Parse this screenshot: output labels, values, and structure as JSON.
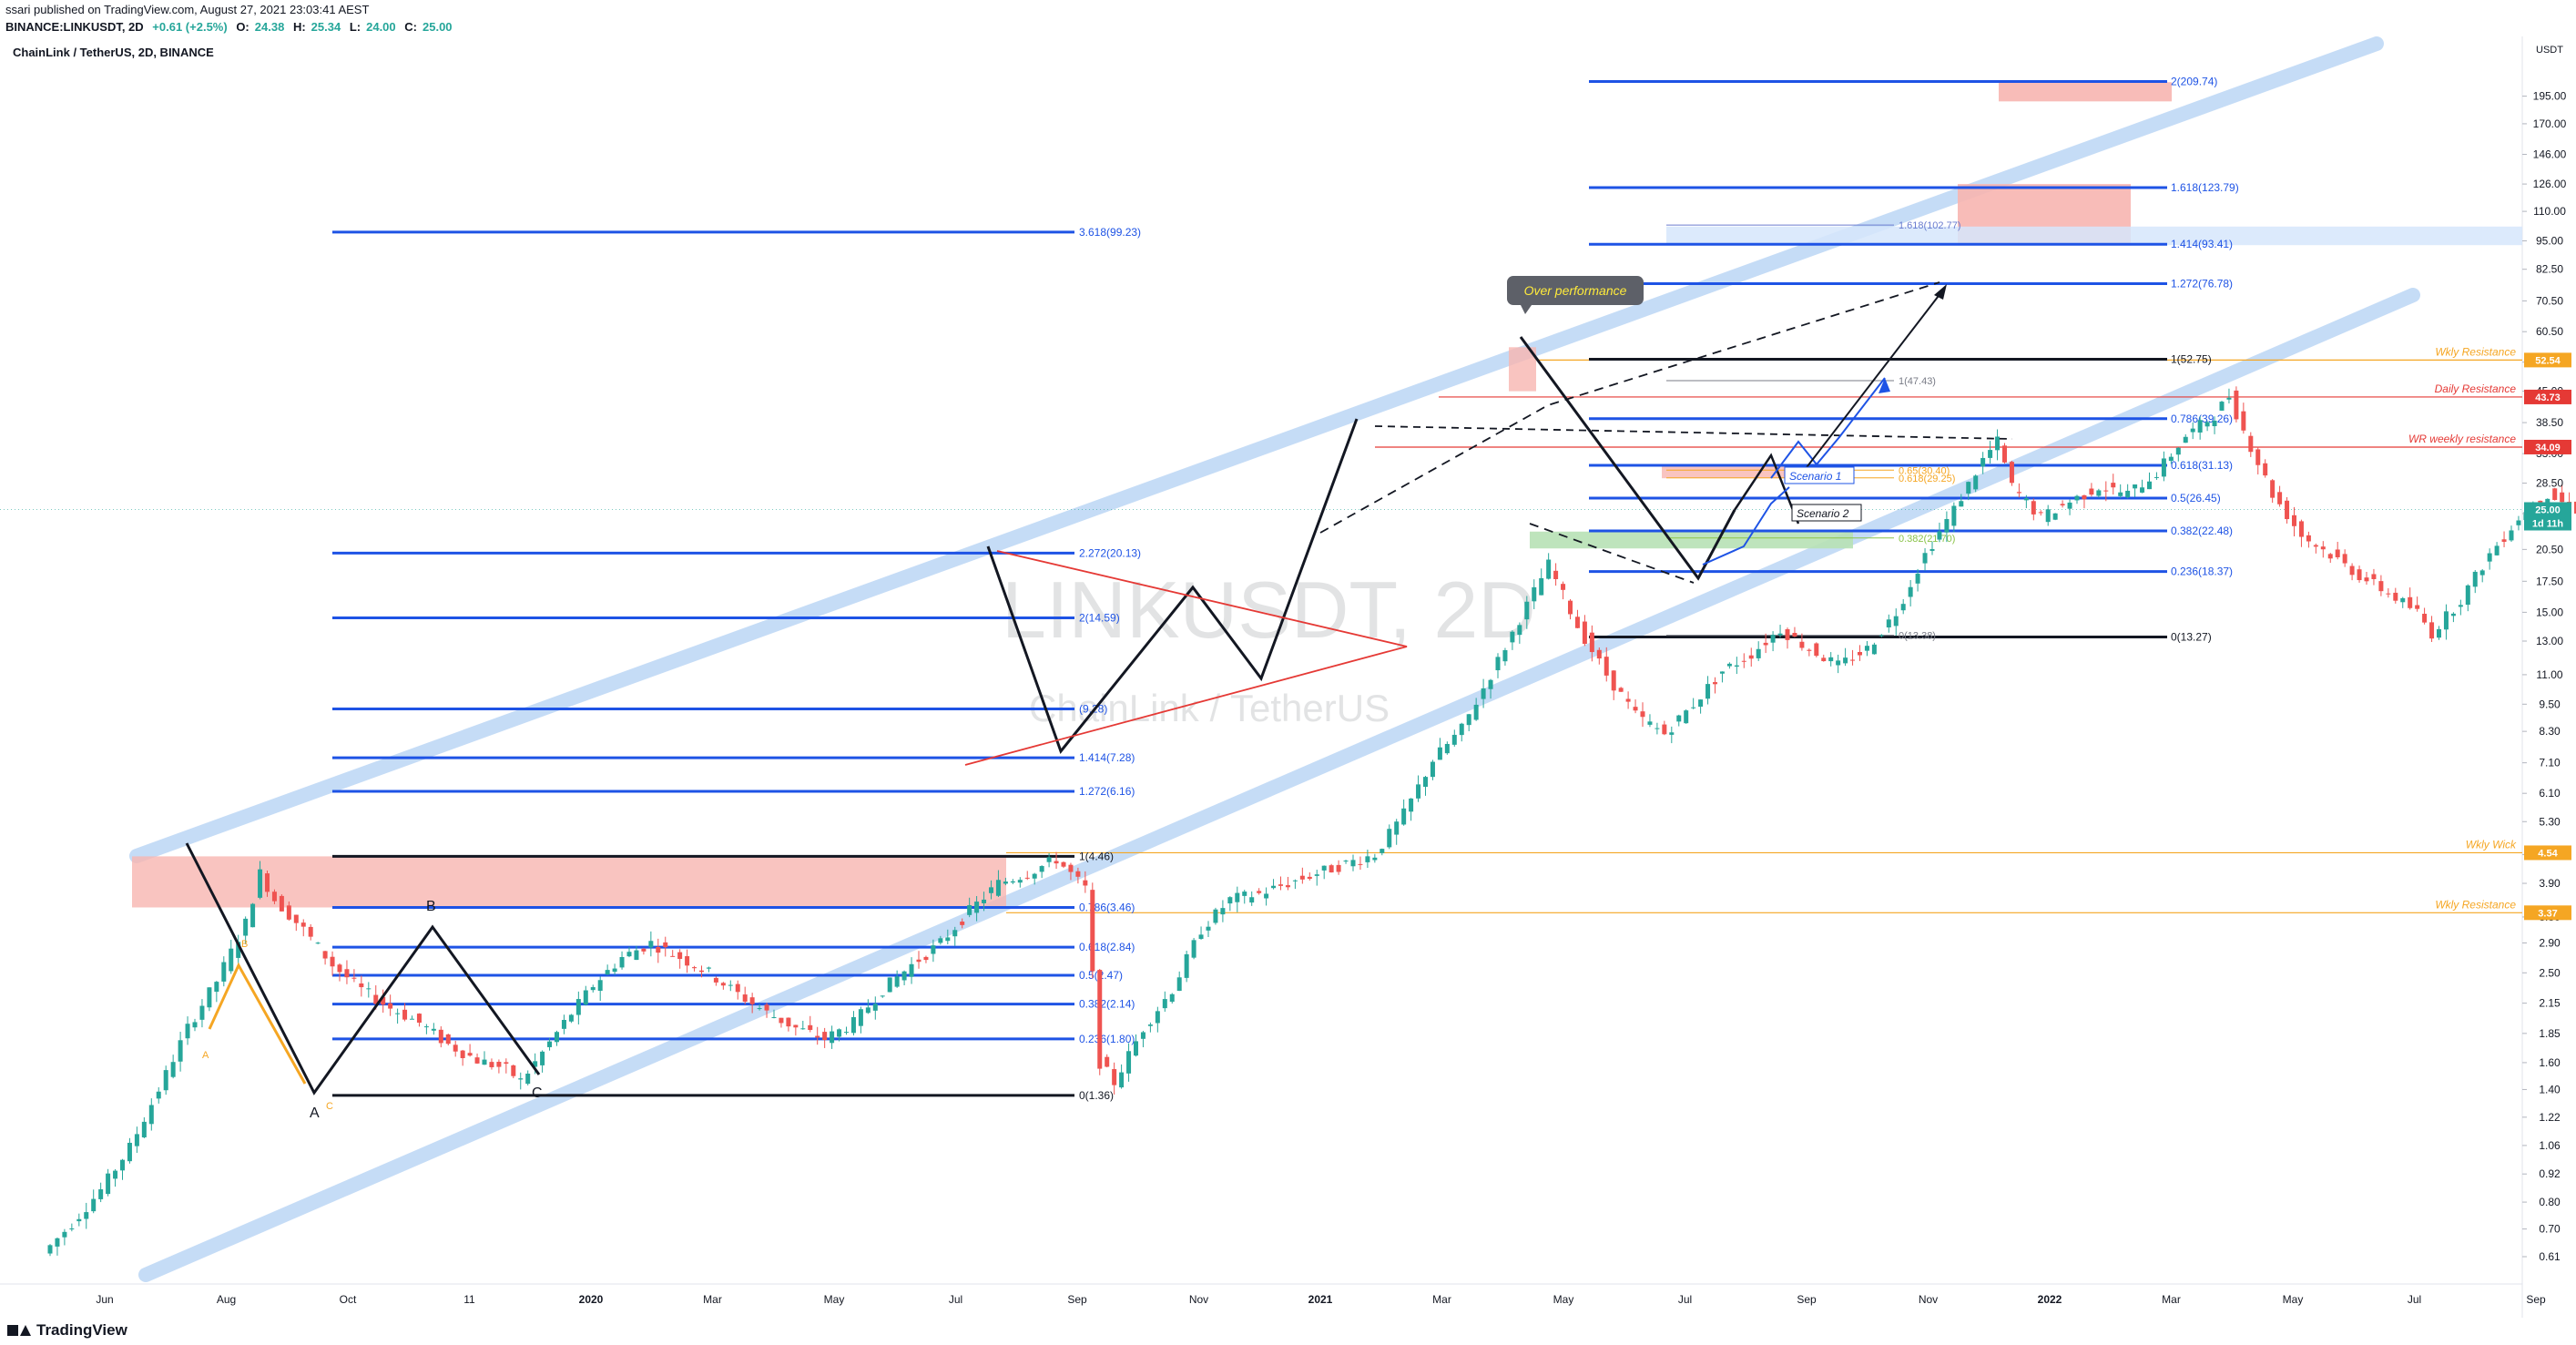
{
  "header": {
    "published": "ssari published on TradingView.com, August 27, 2021 23:03:41 AEST",
    "symbol_line": "BINANCE:LINKUSDT, 2D",
    "open_label": "O:",
    "open": "24.38",
    "high_label": "H:",
    "high": "25.34",
    "low_label": "L:",
    "low": "24.00",
    "close_label": "C:",
    "close": "25.00",
    "last": "25.00",
    "change": "+0.61 (+2.5%)"
  },
  "chart_title": "ChainLink / TetherUS, 2D, BINANCE",
  "watermark": {
    "symbol": "LINKUSDT, 2D",
    "name": "ChainLink / TetherUS"
  },
  "footer": {
    "brand": "TradingView"
  },
  "colors": {
    "up": "#26a69a",
    "down": "#ef5350",
    "fib_blue": "#1e53e5",
    "channel": "#bbd6f5",
    "resistance_orange": "#f5a623",
    "red_line": "#e53935",
    "zone_red": "#f7b5b0",
    "zone_green": "#b7e1b5",
    "zone_blue": "#d6e6fb"
  },
  "chart_data": {
    "type": "candlestick",
    "title": "ChainLink / TetherUS, 2D, BINANCE",
    "xlabel": "",
    "ylabel": "",
    "price_scale": "log",
    "currency": "USDT",
    "yrange": [
      0.6,
      230
    ],
    "y_ticks": [
      "195.00",
      "170.00",
      "146.00",
      "126.00",
      "110.00",
      "95.00",
      "82.50",
      "70.50",
      "60.50",
      "52.00",
      "45.00",
      "38.50",
      "33.00",
      "28.50",
      "24.50",
      "20.50",
      "17.50",
      "15.00",
      "13.00",
      "11.00",
      "9.50",
      "8.30",
      "7.10",
      "6.10",
      "5.30",
      "4.50",
      "3.90",
      "3.30",
      "2.90",
      "2.50",
      "2.15",
      "1.85",
      "1.60",
      "1.40",
      "1.22",
      "1.06",
      "0.92",
      "0.80",
      "0.70",
      "0.61"
    ],
    "x_ticks": [
      "Jun",
      "Aug",
      "Oct",
      "11",
      "2020",
      "Mar",
      "May",
      "Jul",
      "Sep",
      "Nov",
      "2021",
      "Mar",
      "May",
      "Jul",
      "Sep",
      "Nov",
      "2022",
      "Mar",
      "May",
      "Jul",
      "Sep"
    ],
    "price_badges": [
      {
        "price": "52.54",
        "kind": "orange"
      },
      {
        "price": "43.73",
        "kind": "red"
      },
      {
        "price": "34.09",
        "kind": "red"
      },
      {
        "price": "25.00",
        "kind": "green"
      },
      {
        "price": "1d 11h",
        "kind": "countdown"
      },
      {
        "price": "4.54",
        "kind": "orange"
      },
      {
        "price": "3.37",
        "kind": "orange"
      }
    ],
    "horizontal_labels": [
      {
        "text": "Wkly Resistance",
        "price": 52.54
      },
      {
        "text": "Daily Resistance",
        "price": 43.73
      },
      {
        "text": "WR weekly resistance",
        "price": 34.09
      },
      {
        "text": "Wkly Wick",
        "price": 4.54
      },
      {
        "text": "Wkly Resistance",
        "price": 3.37
      }
    ],
    "fib_2019": [
      {
        "label": "3.618(99.23)",
        "price": 99.23
      },
      {
        "label": "2.272(20.13)",
        "price": 20.13
      },
      {
        "label": "2(14.59)",
        "price": 14.59
      },
      {
        "label": "(9.28)",
        "price": 9.28
      },
      {
        "label": "1.414(7.28)",
        "price": 7.28
      },
      {
        "label": "1.272(6.16)",
        "price": 6.16
      },
      {
        "label": "1(4.46)",
        "price": 4.46
      },
      {
        "label": "0.786(3.46)",
        "price": 3.46
      },
      {
        "label": "0.618(2.84)",
        "price": 2.84
      },
      {
        "label": "0.5(2.47)",
        "price": 2.47
      },
      {
        "label": "0.382(2.14)",
        "price": 2.14
      },
      {
        "label": "0.236(1.80)",
        "price": 1.8
      },
      {
        "label": "0(1.36)",
        "price": 1.36
      }
    ],
    "fib_2021": [
      {
        "label": "2(209.74)",
        "price": 209.74
      },
      {
        "label": "1.618(123.79)",
        "price": 123.79
      },
      {
        "label": "1.414(93.41)",
        "price": 93.41
      },
      {
        "label": "1.272(76.78)",
        "price": 76.78
      },
      {
        "label": "1(52.75)",
        "price": 52.75
      },
      {
        "label": "0.786(39.26)",
        "price": 39.26
      },
      {
        "label": "0.618(31.13)",
        "price": 31.13
      },
      {
        "label": "0.5(26.45)",
        "price": 26.45
      },
      {
        "label": "0.382(22.48)",
        "price": 22.48
      },
      {
        "label": "0.236(18.37)",
        "price": 18.37
      },
      {
        "label": "0(13.27)",
        "price": 13.27
      }
    ],
    "fib_small": [
      {
        "label": "1.618(102.77)",
        "price": 102.77
      },
      {
        "label": "1(47.43)",
        "price": 47.43
      },
      {
        "label": "0.65(30.40)",
        "price": 30.4
      },
      {
        "label": "0.618(29.25)",
        "price": 29.25
      },
      {
        "label": "0.382(21.70)",
        "price": 21.7
      },
      {
        "label": "0(13.38)",
        "price": 13.38
      }
    ],
    "annotations": [
      "Over performance",
      "Scenario 1",
      "Scenario 2",
      "A",
      "B",
      "C",
      "A",
      "B",
      "C"
    ],
    "ohlc_last": {
      "open": 24.38,
      "high": 25.34,
      "low": 24.0,
      "close": 25.0
    },
    "price_path": [
      [
        0,
        0.62
      ],
      [
        2,
        0.72
      ],
      [
        4,
        0.85
      ],
      [
        6,
        1.05
      ],
      [
        8,
        1.4
      ],
      [
        10,
        1.9
      ],
      [
        12,
        2.4
      ],
      [
        14,
        3.2
      ],
      [
        15,
        4.1
      ],
      [
        16,
        3.6
      ],
      [
        18,
        3.1
      ],
      [
        20,
        2.6
      ],
      [
        22,
        2.3
      ],
      [
        24,
        2.1
      ],
      [
        26,
        1.95
      ],
      [
        28,
        1.75
      ],
      [
        30,
        1.62
      ],
      [
        32,
        1.55
      ],
      [
        33,
        1.46
      ],
      [
        34,
        1.6
      ],
      [
        36,
        1.95
      ],
      [
        38,
        2.35
      ],
      [
        40,
        2.7
      ],
      [
        42,
        2.9
      ],
      [
        44,
        2.7
      ],
      [
        46,
        2.5
      ],
      [
        48,
        2.25
      ],
      [
        50,
        2.05
      ],
      [
        52,
        1.9
      ],
      [
        54,
        1.8
      ],
      [
        56,
        1.95
      ],
      [
        58,
        2.3
      ],
      [
        60,
        2.6
      ],
      [
        62,
        2.9
      ],
      [
        64,
        3.4
      ],
      [
        66,
        3.9
      ],
      [
        68,
        4.1
      ],
      [
        70,
        4.4
      ],
      [
        72,
        3.8
      ],
      [
        73,
        1.6
      ],
      [
        74,
        1.45
      ],
      [
        76,
        1.9
      ],
      [
        78,
        2.3
      ],
      [
        80,
        3.1
      ],
      [
        82,
        3.6
      ],
      [
        84,
        3.7
      ],
      [
        86,
        3.9
      ],
      [
        88,
        4.1
      ],
      [
        90,
        4.3
      ],
      [
        92,
        4.5
      ],
      [
        94,
        5.5
      ],
      [
        96,
        7.2
      ],
      [
        98,
        8.4
      ],
      [
        100,
        11
      ],
      [
        102,
        14.5
      ],
      [
        104,
        19
      ],
      [
        106,
        14
      ],
      [
        108,
        11
      ],
      [
        110,
        9
      ],
      [
        112,
        8.2
      ],
      [
        114,
        9.5
      ],
      [
        116,
        11.2
      ],
      [
        118,
        12.2
      ],
      [
        120,
        13.8
      ],
      [
        122,
        12.5
      ],
      [
        124,
        11.5
      ],
      [
        126,
        12.5
      ],
      [
        128,
        15
      ],
      [
        130,
        20
      ],
      [
        132,
        25
      ],
      [
        134,
        32
      ],
      [
        135,
        35
      ],
      [
        136,
        28
      ],
      [
        138,
        24
      ],
      [
        140,
        26
      ],
      [
        142,
        28
      ],
      [
        144,
        27
      ],
      [
        146,
        30
      ],
      [
        148,
        36
      ],
      [
        150,
        40
      ],
      [
        151,
        44
      ],
      [
        152,
        37
      ],
      [
        154,
        27
      ],
      [
        156,
        22
      ],
      [
        158,
        20
      ],
      [
        160,
        18
      ],
      [
        162,
        16.5
      ],
      [
        164,
        15
      ],
      [
        165,
        13.5
      ],
      [
        167,
        16
      ],
      [
        169,
        20
      ],
      [
        171,
        24
      ],
      [
        173,
        27
      ],
      [
        175,
        25
      ]
    ]
  }
}
